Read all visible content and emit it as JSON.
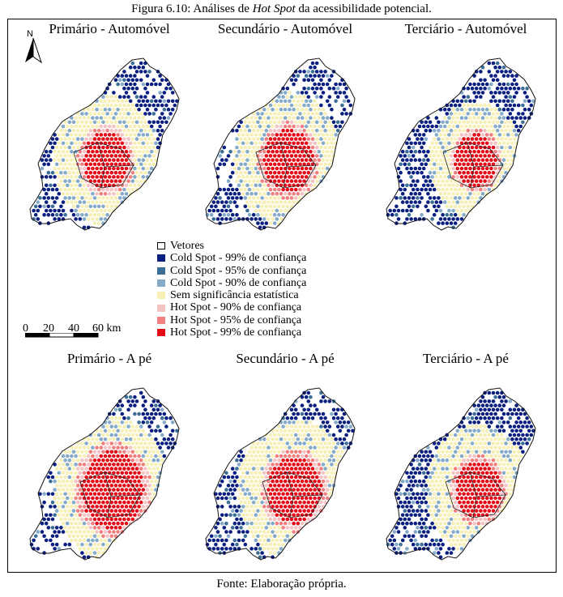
{
  "figure": {
    "title_prefix": "Figura 6.10: Análises de ",
    "title_italic": "Hot Spot",
    "title_suffix": " da acessibilidade potencial.",
    "source": "Fonte: Elaboração própria."
  },
  "north_arrow": {
    "label": "N"
  },
  "legend": {
    "items": [
      {
        "label": "Vetores",
        "color": "#ffffff"
      },
      {
        "label": "Cold Spot - 99% de confiança",
        "color": "#0b1f80"
      },
      {
        "label": "Cold Spot - 95% de confiança",
        "color": "#3c6e96"
      },
      {
        "label": "Cold Spot - 90% de confiança",
        "color": "#85abc9"
      },
      {
        "label": "Sem significância estatística",
        "color": "#f6efb6"
      },
      {
        "label": "Hot Spot - 90% de confiança",
        "color": "#f4c3c4"
      },
      {
        "label": "Hot Spot - 95% de confiança",
        "color": "#f08080"
      },
      {
        "label": "Hot Spot - 99% de confiança",
        "color": "#e30b17"
      }
    ]
  },
  "scale_bar": {
    "ticks": [
      "0",
      "20",
      "40",
      "60 km"
    ]
  },
  "maps": [
    {
      "title": "Primário - Automóvel",
      "hot_radius": 0.22,
      "band_radius": 0.4,
      "center_dx": -0.1,
      "cold_level": 0.55
    },
    {
      "title": "Secundário - Automóvel",
      "hot_radius": 0.24,
      "band_radius": 0.42,
      "center_dx": -0.05,
      "cold_level": 0.5
    },
    {
      "title": "Terciário - Automóvel",
      "hot_radius": 0.2,
      "band_radius": 0.36,
      "center_dx": 0.0,
      "cold_level": 0.6
    },
    {
      "title": "Primário - A pé",
      "hot_radius": 0.3,
      "band_radius": 0.45,
      "center_dx": -0.05,
      "cold_level": 0.45
    },
    {
      "title": "Secundário - A pé",
      "hot_radius": 0.26,
      "band_radius": 0.44,
      "center_dx": 0.0,
      "cold_level": 0.55
    },
    {
      "title": "Terciário - A pé",
      "hot_radius": 0.22,
      "band_radius": 0.4,
      "center_dx": 0.02,
      "cold_level": 0.65
    }
  ]
}
